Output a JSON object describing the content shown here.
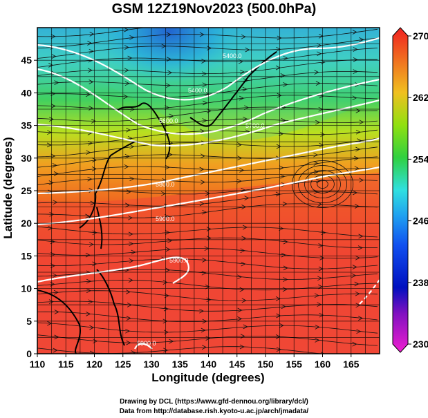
{
  "title": "GSM 12Z19Nov2023 (500.0hPa)",
  "xlabel": "Longitude (degrees)",
  "ylabel": "Latitude  (degrees)",
  "credits": [
    "Drawing by DCL (https://www.gfd-dennou.org/library/dcl/)",
    "Data from http://database.rish.kyoto-u.ac.jp/arch/jmadata/"
  ],
  "map": {
    "lon_range": [
      110,
      170
    ],
    "lat_range": [
      0,
      50
    ],
    "lon_ticks": [
      110,
      115,
      120,
      125,
      130,
      135,
      140,
      145,
      150,
      155,
      160,
      165
    ],
    "lat_ticks": [
      0,
      5,
      10,
      15,
      20,
      25,
      30,
      35,
      40,
      45
    ],
    "grid": true
  },
  "colorbar": {
    "min": 230,
    "max": 270,
    "tick_values": [
      230,
      238,
      246,
      254,
      262,
      270
    ],
    "tick_labels": [
      "230",
      "238",
      "246",
      "254",
      "262",
      "270"
    ]
  },
  "contour_labels": [
    "5400.0",
    "5400.0",
    "5600.0",
    "5700.0",
    "5800.0",
    "5900.0",
    "5900.0",
    "5900.0"
  ]
}
